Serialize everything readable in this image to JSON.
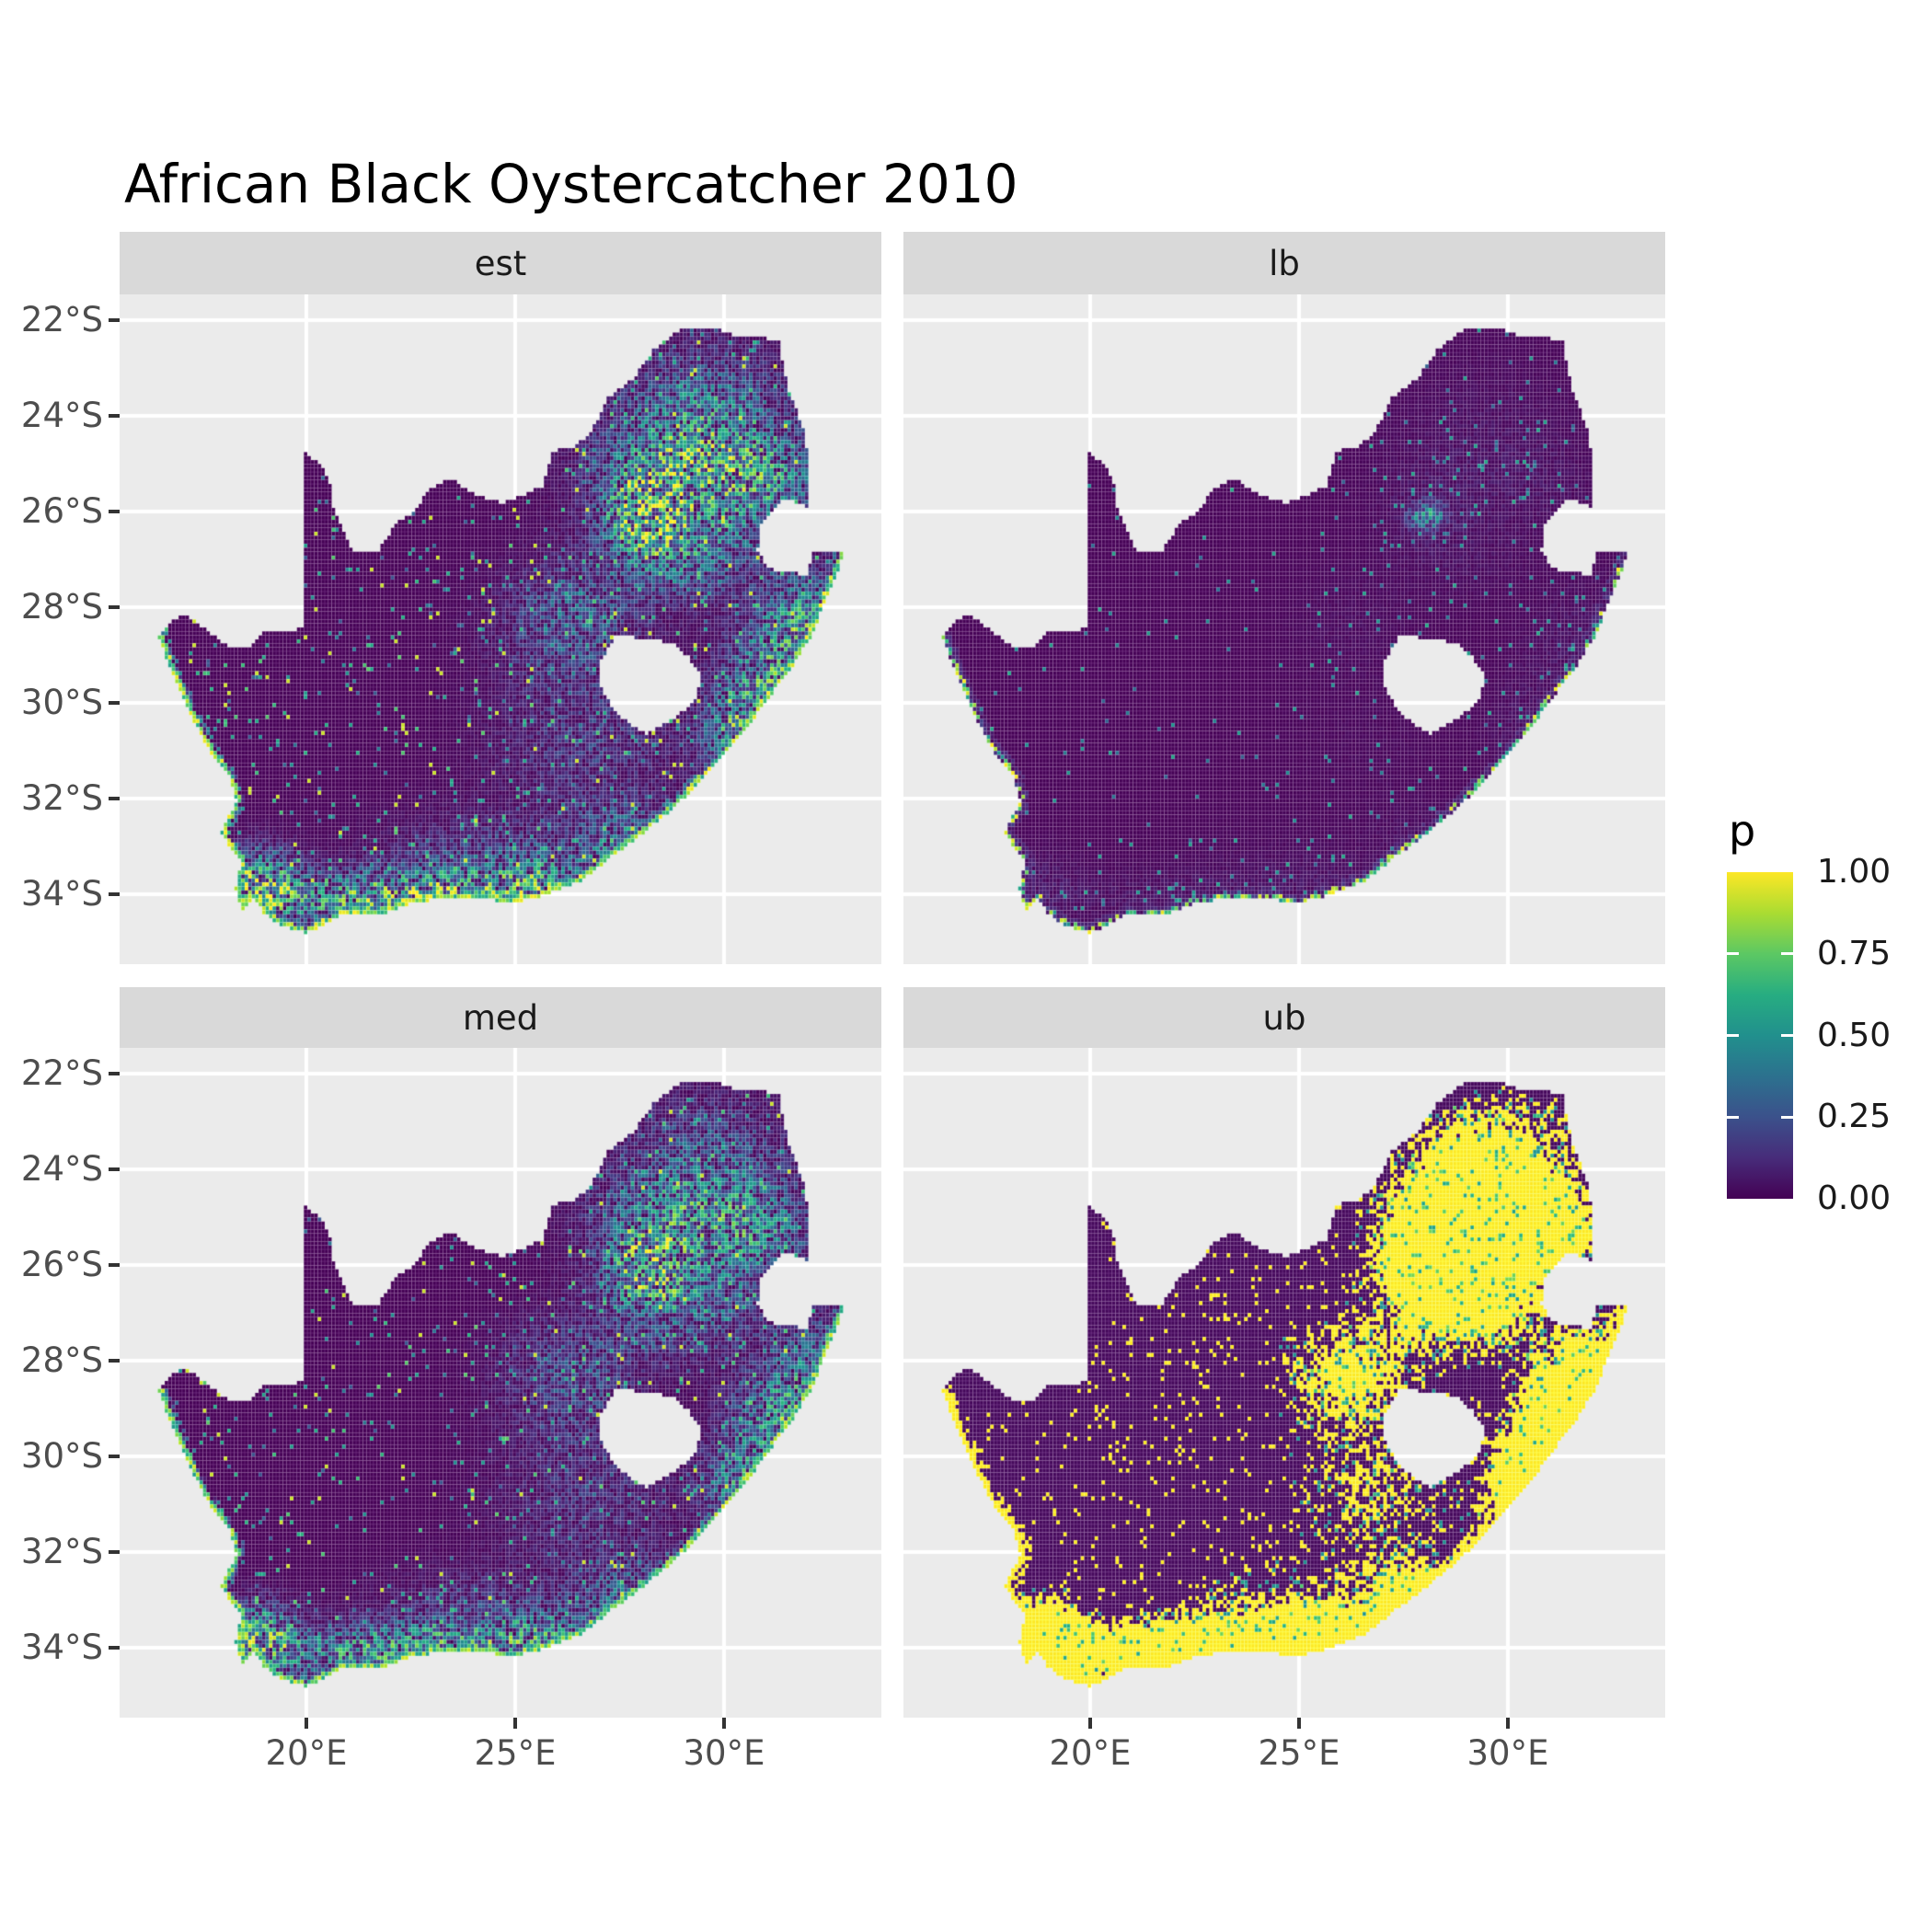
{
  "title": "African Black Oystercatcher 2010",
  "facets": [
    {
      "id": "est",
      "label": "est"
    },
    {
      "id": "lb",
      "label": "lb"
    },
    {
      "id": "med",
      "label": "med"
    },
    {
      "id": "ub",
      "label": "ub"
    }
  ],
  "axes": {
    "x": {
      "ticks": [
        {
          "value": 20,
          "label": "20°E"
        },
        {
          "value": 25,
          "label": "25°E"
        },
        {
          "value": 30,
          "label": "30°E"
        }
      ]
    },
    "y": {
      "ticks": [
        {
          "value": 22,
          "label": "22°S"
        },
        {
          "value": 24,
          "label": "24°S"
        },
        {
          "value": 26,
          "label": "26°S"
        },
        {
          "value": 28,
          "label": "28°S"
        },
        {
          "value": 30,
          "label": "30°S"
        },
        {
          "value": 32,
          "label": "32°S"
        },
        {
          "value": 34,
          "label": "34°S"
        }
      ]
    }
  },
  "legend": {
    "title": "p",
    "ticks": [
      {
        "value": 1.0,
        "label": "1.00"
      },
      {
        "value": 0.75,
        "label": "0.75"
      },
      {
        "value": 0.5,
        "label": "0.50"
      },
      {
        "value": 0.25,
        "label": "0.25"
      },
      {
        "value": 0.0,
        "label": "0.00"
      }
    ]
  },
  "theme": {
    "page_bg": "#FFFFFF",
    "panel_bg": "#EBEBEB",
    "strip_bg": "#D9D9D9",
    "grid_color": "#FFFFFF",
    "tick_color": "#333333",
    "axis_text_color": "#4D4D4D",
    "strip_text_color": "#1A1A1A",
    "title_color": "#000000",
    "legend_text_color": "#1A1A1A"
  },
  "chart_data": {
    "type": "heatmap",
    "subtype": "faceted-geographic-raster",
    "title": "African Black Oystercatcher 2010",
    "facet_labels": [
      "est",
      "lb",
      "med",
      "ub"
    ],
    "value_name": "p",
    "value_range": [
      0,
      1
    ],
    "x_range_deg_east": [
      15.53,
      33.77
    ],
    "y_range_deg_south": [
      21.46,
      35.46
    ],
    "cell_size_deg": 0.0833,
    "colormap": {
      "name": "viridis",
      "stops": [
        [
          0.0,
          [
            68,
            1,
            84
          ]
        ],
        [
          0.125,
          [
            71,
            44,
            122
          ]
        ],
        [
          0.25,
          [
            59,
            81,
            139
          ]
        ],
        [
          0.375,
          [
            44,
            113,
            142
          ]
        ],
        [
          0.5,
          [
            33,
            144,
            141
          ]
        ],
        [
          0.625,
          [
            39,
            173,
            129
          ]
        ],
        [
          0.75,
          [
            92,
            200,
            99
          ]
        ],
        [
          0.875,
          [
            170,
            220,
            50
          ]
        ],
        [
          1.0,
          [
            253,
            231,
            37
          ]
        ]
      ]
    },
    "region_outline_lon_lat": [
      [
        16.45,
        -28.58
      ],
      [
        16.8,
        -28.3
      ],
      [
        17.1,
        -28.15
      ],
      [
        17.45,
        -28.38
      ],
      [
        17.7,
        -28.55
      ],
      [
        18.2,
        -28.88
      ],
      [
        18.65,
        -28.82
      ],
      [
        19.0,
        -28.52
      ],
      [
        19.6,
        -28.5
      ],
      [
        19.98,
        -28.43
      ],
      [
        19.98,
        -24.77
      ],
      [
        20.35,
        -25.05
      ],
      [
        20.6,
        -25.45
      ],
      [
        20.62,
        -25.9
      ],
      [
        20.85,
        -26.3
      ],
      [
        21.12,
        -26.86
      ],
      [
        21.7,
        -26.86
      ],
      [
        22.15,
        -26.25
      ],
      [
        22.62,
        -26.0
      ],
      [
        22.9,
        -25.55
      ],
      [
        23.45,
        -25.3
      ],
      [
        23.95,
        -25.62
      ],
      [
        24.7,
        -25.82
      ],
      [
        25.35,
        -25.6
      ],
      [
        25.65,
        -25.48
      ],
      [
        25.9,
        -24.75
      ],
      [
        26.45,
        -24.63
      ],
      [
        26.85,
        -24.3
      ],
      [
        27.2,
        -23.65
      ],
      [
        27.85,
        -23.2
      ],
      [
        28.35,
        -22.58
      ],
      [
        29.05,
        -22.15
      ],
      [
        29.7,
        -22.14
      ],
      [
        30.35,
        -22.35
      ],
      [
        31.3,
        -22.4
      ],
      [
        31.55,
        -23.5
      ],
      [
        31.95,
        -24.35
      ],
      [
        32.02,
        -25.1
      ],
      [
        32.0,
        -25.9
      ],
      [
        31.4,
        -25.72
      ],
      [
        30.85,
        -26.3
      ],
      [
        30.8,
        -26.85
      ],
      [
        31.1,
        -27.2
      ],
      [
        31.97,
        -27.32
      ],
      [
        32.15,
        -26.86
      ],
      [
        32.89,
        -26.86
      ],
      [
        32.55,
        -27.6
      ],
      [
        32.12,
        -28.55
      ],
      [
        31.6,
        -29.3
      ],
      [
        31.05,
        -29.9
      ],
      [
        30.4,
        -30.7
      ],
      [
        29.65,
        -31.45
      ],
      [
        28.85,
        -32.15
      ],
      [
        28.1,
        -32.7
      ],
      [
        27.4,
        -33.15
      ],
      [
        26.6,
        -33.7
      ],
      [
        25.85,
        -33.95
      ],
      [
        25.6,
        -34.05
      ],
      [
        24.85,
        -34.2
      ],
      [
        24.2,
        -34.05
      ],
      [
        23.4,
        -34.1
      ],
      [
        22.6,
        -34.15
      ],
      [
        21.8,
        -34.42
      ],
      [
        20.9,
        -34.42
      ],
      [
        20.0,
        -34.82
      ],
      [
        19.35,
        -34.62
      ],
      [
        18.95,
        -34.38
      ],
      [
        18.78,
        -34.08
      ],
      [
        18.45,
        -34.35
      ],
      [
        18.3,
        -33.9
      ],
      [
        18.45,
        -33.3
      ],
      [
        17.95,
        -32.75
      ],
      [
        18.32,
        -32.05
      ],
      [
        18.2,
        -31.6
      ],
      [
        17.6,
        -30.9
      ],
      [
        17.1,
        -30.0
      ],
      [
        16.75,
        -29.3
      ]
    ],
    "lesotho_hole_lon_lat": [
      [
        27.0,
        -29.2
      ],
      [
        27.4,
        -28.6
      ],
      [
        28.2,
        -28.65
      ],
      [
        28.75,
        -28.75
      ],
      [
        29.15,
        -29.05
      ],
      [
        29.45,
        -29.45
      ],
      [
        29.3,
        -29.95
      ],
      [
        28.85,
        -30.3
      ],
      [
        28.15,
        -30.65
      ],
      [
        27.75,
        -30.45
      ],
      [
        27.4,
        -30.2
      ],
      [
        27.05,
        -29.65
      ]
    ],
    "coastline_lon_lat": [
      [
        32.89,
        -26.86
      ],
      [
        32.55,
        -27.6
      ],
      [
        32.12,
        -28.55
      ],
      [
        31.6,
        -29.3
      ],
      [
        31.05,
        -29.9
      ],
      [
        30.4,
        -30.7
      ],
      [
        29.65,
        -31.45
      ],
      [
        28.85,
        -32.15
      ],
      [
        28.1,
        -32.7
      ],
      [
        27.4,
        -33.15
      ],
      [
        26.6,
        -33.7
      ],
      [
        25.85,
        -33.95
      ],
      [
        25.6,
        -34.05
      ],
      [
        24.85,
        -34.2
      ],
      [
        24.2,
        -34.05
      ],
      [
        23.4,
        -34.1
      ],
      [
        22.6,
        -34.15
      ],
      [
        21.8,
        -34.42
      ],
      [
        20.9,
        -34.42
      ],
      [
        20.0,
        -34.82
      ],
      [
        19.35,
        -34.62
      ],
      [
        18.95,
        -34.38
      ],
      [
        18.78,
        -34.08
      ],
      [
        18.45,
        -34.35
      ],
      [
        18.3,
        -33.9
      ],
      [
        18.45,
        -33.3
      ],
      [
        17.95,
        -32.75
      ],
      [
        18.32,
        -32.05
      ],
      [
        18.2,
        -31.6
      ],
      [
        17.6,
        -30.9
      ],
      [
        17.1,
        -30.0
      ],
      [
        16.75,
        -29.3
      ],
      [
        16.45,
        -28.58
      ]
    ],
    "hotspots_lon_lat_sx_sy_amp": [
      [
        28.1,
        -26.05,
        0.8,
        0.65,
        1.05
      ],
      [
        28.7,
        -25.2,
        1.7,
        1.1,
        0.6
      ],
      [
        29.6,
        -23.9,
        1.9,
        1.3,
        0.45
      ],
      [
        30.9,
        -25.4,
        1.3,
        1.0,
        0.55
      ],
      [
        29.0,
        -26.9,
        1.7,
        0.9,
        0.5
      ],
      [
        26.3,
        -28.3,
        1.5,
        1.1,
        0.38
      ],
      [
        31.1,
        -29.4,
        1.0,
        1.2,
        0.6
      ],
      [
        30.3,
        -30.6,
        0.8,
        0.9,
        0.6
      ],
      [
        18.9,
        -33.85,
        0.8,
        0.7,
        1.05
      ],
      [
        20.9,
        -34.1,
        1.7,
        0.55,
        0.65
      ],
      [
        23.2,
        -34.0,
        1.6,
        0.5,
        0.6
      ],
      [
        25.6,
        -33.85,
        1.1,
        0.6,
        0.6
      ],
      [
        27.7,
        -32.9,
        1.1,
        0.7,
        0.5
      ],
      [
        26.8,
        -30.8,
        2.0,
        1.5,
        0.22
      ],
      [
        24.3,
        -33.5,
        2.3,
        1.0,
        0.3
      ],
      [
        32.0,
        -28.3,
        0.9,
        1.1,
        0.55
      ]
    ],
    "facet_models": {
      "est": {
        "type": "continuous",
        "seed": 1,
        "mult": 1.0,
        "speckle": 0.035,
        "yellow_speckle": 0.008,
        "coast": 1.0
      },
      "lb": {
        "type": "lower",
        "seed": 2,
        "gauteng": [
          28.07,
          -26.1,
          0.45,
          0.32,
          1.1
        ]
      },
      "med": {
        "type": "continuous",
        "seed": 3,
        "mult": 0.82,
        "speckle": 0.03,
        "yellow_speckle": 0.006,
        "coast": 0.95
      },
      "ub": {
        "type": "upper",
        "seed": 4,
        "speckle": 0.05
      }
    }
  }
}
